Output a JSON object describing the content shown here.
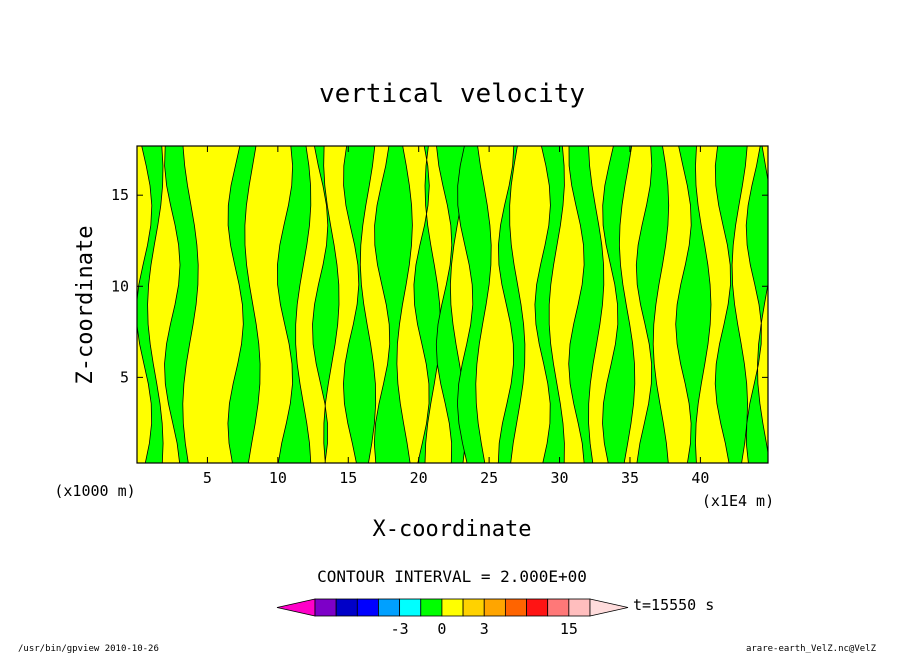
{
  "chart_data": {
    "type": "heatmap",
    "title": "vertical velocity",
    "xlabel": "X-coordinate",
    "ylabel": "Z-coordinate",
    "x_unit_label": "(x1E4 m)",
    "y_unit_label": "(x1000 m)",
    "xlim": [
      0,
      44.8
    ],
    "ylim": [
      0.3,
      17.7
    ],
    "x_ticks": [
      5,
      10,
      15,
      20,
      25,
      30,
      35,
      40
    ],
    "y_ticks": [
      5,
      10,
      15
    ],
    "x_tick_labels": [
      "5",
      "10",
      "15",
      "20",
      "25",
      "30",
      "35",
      "40"
    ],
    "y_tick_labels": [
      "5",
      "10",
      "15"
    ],
    "contour_interval_text": "CONTOUR INTERVAL = 2.000E+00",
    "time_label": "t=15550 s",
    "fill_colors": {
      "positive": "#ffff00",
      "negative": "#00ff00"
    },
    "colorbar": {
      "colors": [
        "#ff00c8",
        "#7d00c8",
        "#0000c8",
        "#0000ff",
        "#00a0ff",
        "#00ffff",
        "#00ff00",
        "#ffff00",
        "#ffd200",
        "#ffa500",
        "#ff6400",
        "#ff1414",
        "#ff7878",
        "#ffbebe",
        "#ffdcdc"
      ],
      "labels": [
        "-3",
        "0",
        "3",
        "15"
      ]
    },
    "green_bands_x": [
      [
        0.5,
        1.3
      ],
      [
        2.5,
        3.8
      ],
      [
        7.0,
        8.2
      ],
      [
        10.5,
        11.8
      ],
      [
        13.0,
        13.8
      ],
      [
        15.2,
        16.4
      ],
      [
        17.4,
        19.0
      ],
      [
        20.2,
        21.0
      ],
      [
        21.8,
        22.8
      ],
      [
        23.3,
        24.6
      ],
      [
        26.2,
        27.0
      ],
      [
        28.8,
        29.8
      ],
      [
        31.2,
        32.6
      ],
      [
        33.6,
        34.8
      ],
      [
        36.0,
        37.2
      ],
      [
        38.8,
        40.2
      ],
      [
        41.6,
        42.8
      ],
      [
        43.8,
        44.6
      ]
    ]
  },
  "footer": {
    "left_text": "/usr/bin/gpview  2010-10-26",
    "right_text": "arare-earth_VelZ.nc@VelZ"
  }
}
